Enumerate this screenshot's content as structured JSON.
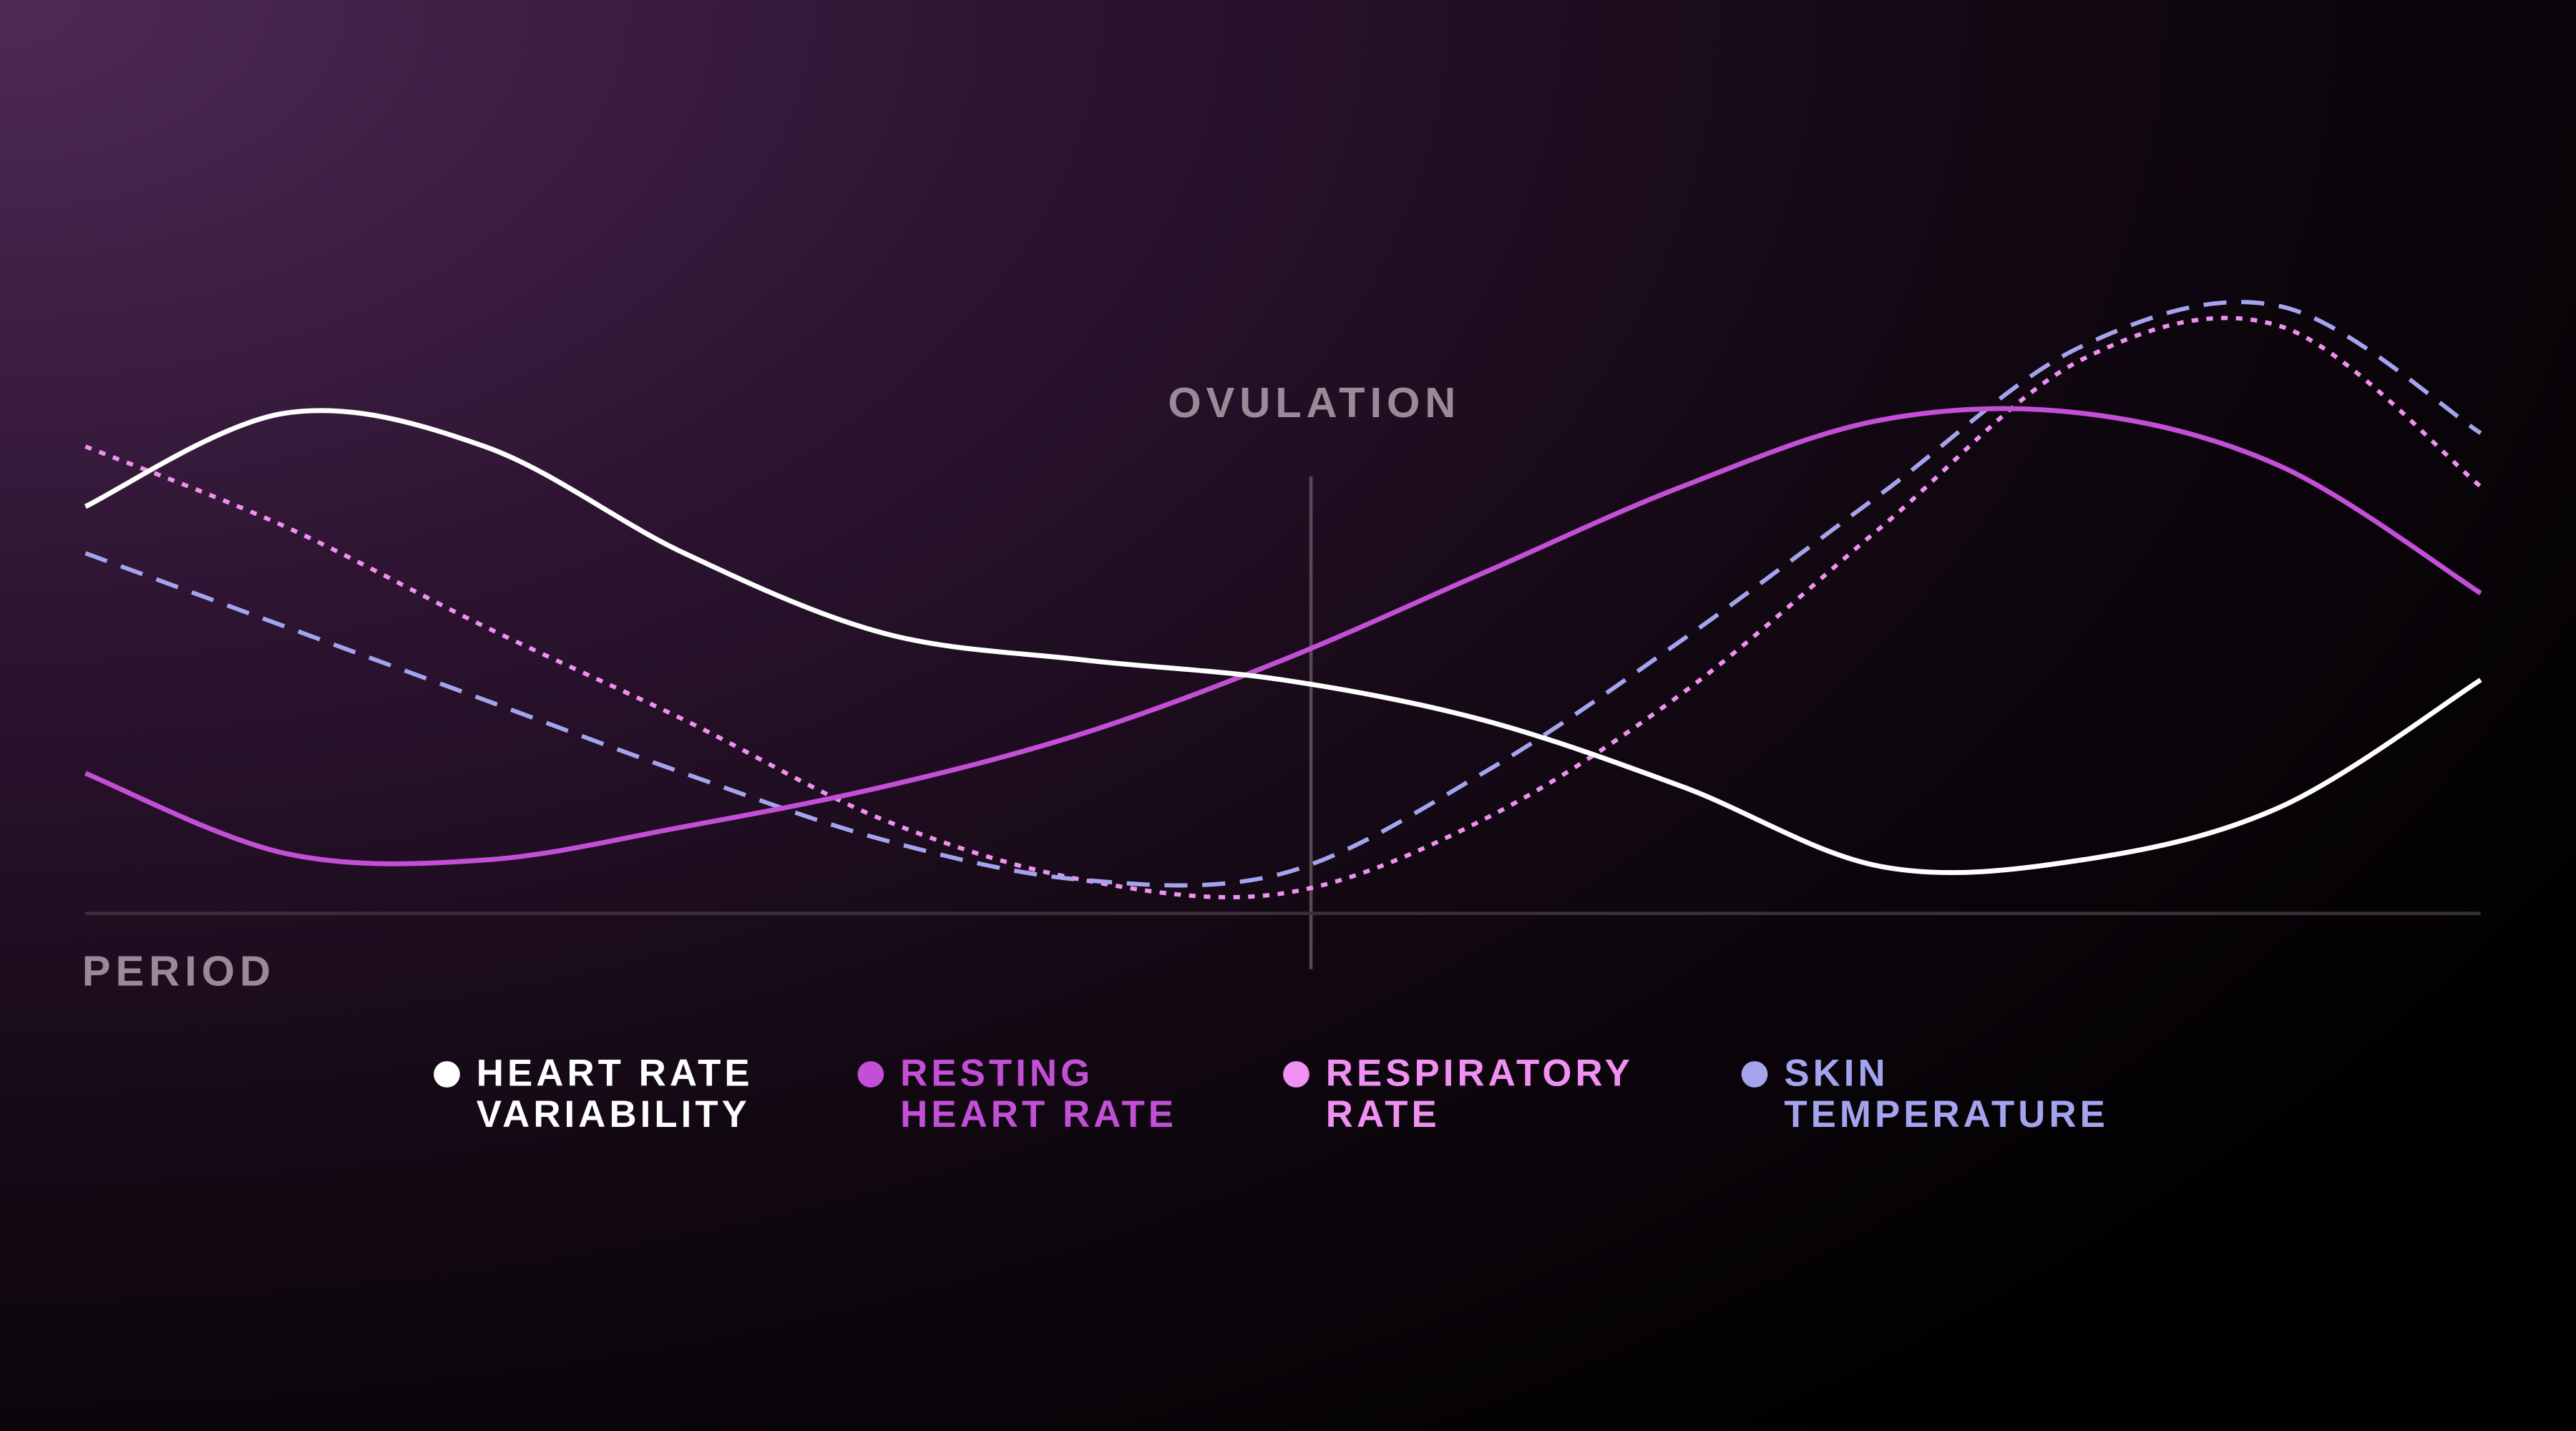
{
  "chart_data": {
    "type": "line",
    "annotations": {
      "top": "OVULATION",
      "bottom": "PERIOD"
    },
    "categories": [
      null,
      null,
      null,
      null,
      null,
      null,
      null,
      null,
      null,
      null,
      null,
      null,
      null
    ],
    "ylim": [
      0,
      100
    ],
    "series": [
      {
        "name": "HEART RATE VARIABILITY",
        "color": "#ffffff",
        "style": "solid",
        "values": [
          61,
          75,
          70,
          54,
          42,
          38,
          35,
          29,
          19,
          7,
          8,
          16,
          35
        ]
      },
      {
        "name": "RESTING HEART RATE",
        "color": "#c34fd6",
        "style": "solid",
        "values": [
          21,
          9,
          8,
          13,
          19,
          27,
          38,
          51,
          64,
          74,
          75,
          67,
          48
        ]
      },
      {
        "name": "RESPIRATORY RATE",
        "color": "#f090f0",
        "style": "dotted",
        "values": [
          70,
          58,
          43,
          29,
          14,
          5,
          3,
          14,
          33,
          58,
          83,
          88,
          64
        ]
      },
      {
        "name": "SKIN TEMPERATURE",
        "color": "#a4a4ee",
        "style": "dashed",
        "values": [
          54,
          43,
          32,
          21,
          11,
          5,
          6,
          21,
          41,
          63,
          85,
          91,
          72
        ]
      }
    ]
  }
}
